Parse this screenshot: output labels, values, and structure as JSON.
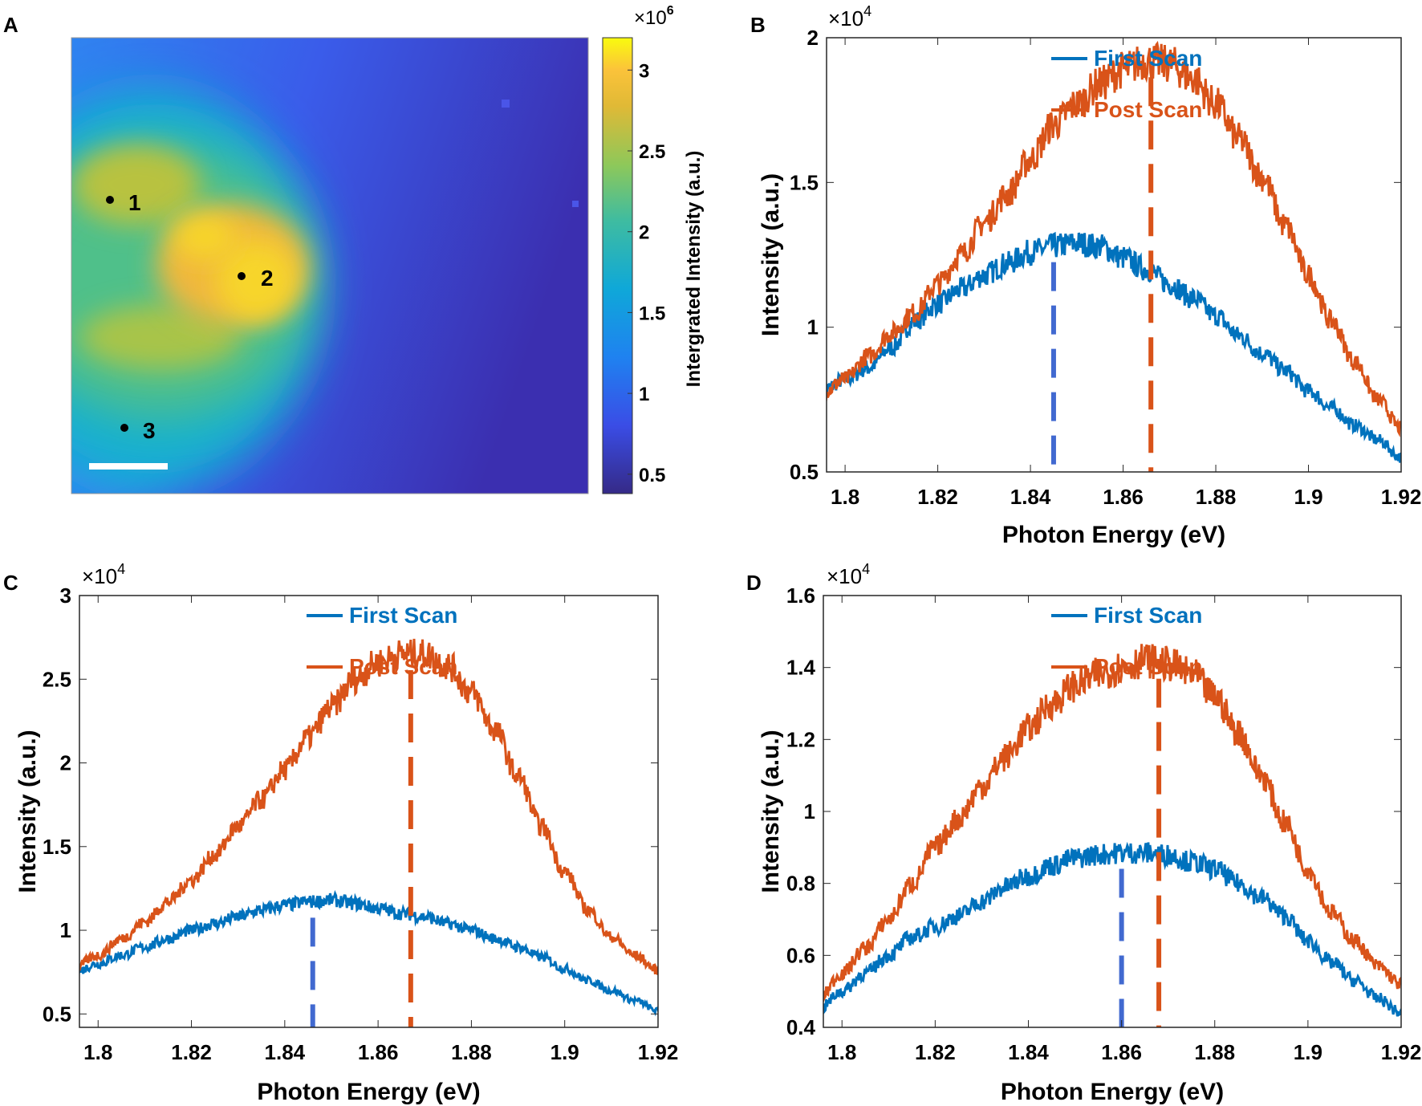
{
  "panel_a": {
    "label": "A",
    "colorbar": {
      "label": "Intergrated Intensity (a.u.)",
      "multiplier_base": "×10",
      "multiplier_exp": "6",
      "ticks": [
        "0.5",
        "1",
        "1.5",
        "2",
        "2.5",
        "3"
      ],
      "tick_values": [
        0.5,
        1,
        1.5,
        2,
        2.5,
        3
      ],
      "range": [
        0.38,
        3.2
      ],
      "colormap": "parula"
    },
    "points": [
      {
        "label": "1"
      },
      {
        "label": "2"
      },
      {
        "label": "3"
      }
    ]
  },
  "chart_data": [
    {
      "panel": "B",
      "type": "line",
      "xlabel": "Photon Energy (eV)",
      "ylabel": "Intensity (a.u.)",
      "y_multiplier_base": "×10",
      "y_multiplier_exp": "4",
      "xlim": [
        1.796,
        1.92
      ],
      "ylim": [
        0.5,
        2
      ],
      "xticks": [
        "1.8",
        "1.82",
        "1.84",
        "1.86",
        "1.88",
        "1.9",
        "1.92"
      ],
      "yticks": [
        "0.5",
        "1",
        "1.5",
        "2"
      ],
      "legend": "top-right",
      "x": [
        1.795,
        1.8,
        1.805,
        1.81,
        1.815,
        1.82,
        1.825,
        1.83,
        1.835,
        1.84,
        1.845,
        1.85,
        1.855,
        1.86,
        1.865,
        1.87,
        1.875,
        1.88,
        1.885,
        1.89,
        1.895,
        1.9,
        1.905,
        1.91,
        1.915,
        1.92
      ],
      "series": [
        {
          "name": "First Scan",
          "color": "#0072BD",
          "values": [
            0.78,
            0.82,
            0.86,
            0.93,
            1.02,
            1.08,
            1.13,
            1.18,
            1.22,
            1.26,
            1.28,
            1.29,
            1.28,
            1.24,
            1.2,
            1.15,
            1.1,
            1.04,
            0.97,
            0.91,
            0.85,
            0.78,
            0.72,
            0.66,
            0.61,
            0.55
          ],
          "peak": 1.845,
          "peak_color": "#4169D0"
        },
        {
          "name": "Post Scan",
          "color": "#D95319",
          "values": [
            0.77,
            0.82,
            0.9,
            0.98,
            1.05,
            1.15,
            1.25,
            1.36,
            1.46,
            1.58,
            1.7,
            1.77,
            1.84,
            1.89,
            1.92,
            1.91,
            1.86,
            1.77,
            1.65,
            1.52,
            1.35,
            1.18,
            1.02,
            0.88,
            0.75,
            0.65
          ],
          "peak": 1.866,
          "peak_color": "#D95319"
        }
      ]
    },
    {
      "panel": "C",
      "type": "line",
      "xlabel": "Photon Energy (eV)",
      "ylabel": "Intensity (a.u.)",
      "y_multiplier_base": "×10",
      "y_multiplier_exp": "4",
      "xlim": [
        1.796,
        1.92
      ],
      "ylim": [
        0.42,
        3
      ],
      "xticks": [
        "1.8",
        "1.82",
        "1.84",
        "1.86",
        "1.88",
        "1.9",
        "1.92"
      ],
      "yticks": [
        "0.5",
        "1",
        "1.5",
        "2",
        "2.5",
        "3"
      ],
      "legend": "top-right",
      "x": [
        1.795,
        1.8,
        1.805,
        1.81,
        1.815,
        1.82,
        1.825,
        1.83,
        1.835,
        1.84,
        1.845,
        1.85,
        1.855,
        1.86,
        1.865,
        1.87,
        1.875,
        1.88,
        1.885,
        1.89,
        1.895,
        1.9,
        1.905,
        1.91,
        1.915,
        1.92
      ],
      "series": [
        {
          "name": "First Scan",
          "color": "#0072BD",
          "values": [
            0.75,
            0.8,
            0.85,
            0.9,
            0.95,
            1.0,
            1.04,
            1.08,
            1.12,
            1.15,
            1.17,
            1.18,
            1.16,
            1.13,
            1.1,
            1.08,
            1.04,
            1.0,
            0.95,
            0.9,
            0.84,
            0.77,
            0.7,
            0.64,
            0.58,
            0.52
          ],
          "peak": 1.846,
          "peak_color": "#4169D0"
        },
        {
          "name": "Post Scan",
          "color": "#D95319",
          "values": [
            0.78,
            0.85,
            0.95,
            1.05,
            1.17,
            1.3,
            1.45,
            1.62,
            1.78,
            1.96,
            2.15,
            2.33,
            2.5,
            2.6,
            2.65,
            2.65,
            2.58,
            2.42,
            2.2,
            1.92,
            1.62,
            1.35,
            1.12,
            0.96,
            0.85,
            0.76
          ],
          "peak": 1.867,
          "peak_color": "#D95319"
        }
      ]
    },
    {
      "panel": "D",
      "type": "line",
      "xlabel": "Photon Energy (eV)",
      "ylabel": "Intensity (a.u.)",
      "y_multiplier_base": "×10",
      "y_multiplier_exp": "4",
      "xlim": [
        1.796,
        1.92
      ],
      "ylim": [
        0.4,
        1.6
      ],
      "xticks": [
        "1.8",
        "1.82",
        "1.84",
        "1.86",
        "1.88",
        "1.9",
        "1.92"
      ],
      "yticks": [
        "0.4",
        "0.6",
        "0.8",
        "1",
        "1.2",
        "1.4",
        "1.6"
      ],
      "legend": "top-right",
      "x": [
        1.795,
        1.8,
        1.805,
        1.81,
        1.815,
        1.82,
        1.825,
        1.83,
        1.835,
        1.84,
        1.845,
        1.85,
        1.855,
        1.86,
        1.865,
        1.87,
        1.875,
        1.88,
        1.885,
        1.89,
        1.895,
        1.9,
        1.905,
        1.91,
        1.915,
        1.92
      ],
      "series": [
        {
          "name": "First Scan",
          "color": "#0072BD",
          "values": [
            0.45,
            0.5,
            0.55,
            0.6,
            0.65,
            0.68,
            0.71,
            0.75,
            0.79,
            0.82,
            0.85,
            0.87,
            0.88,
            0.885,
            0.885,
            0.88,
            0.86,
            0.84,
            0.8,
            0.76,
            0.71,
            0.64,
            0.58,
            0.53,
            0.48,
            0.44
          ],
          "peak": 1.86,
          "peak_color": "#4169D0"
        },
        {
          "name": "Post Scan",
          "color": "#D95319",
          "values": [
            0.48,
            0.55,
            0.62,
            0.7,
            0.8,
            0.9,
            0.98,
            1.07,
            1.15,
            1.23,
            1.3,
            1.35,
            1.38,
            1.4,
            1.42,
            1.41,
            1.38,
            1.32,
            1.22,
            1.1,
            0.97,
            0.84,
            0.72,
            0.64,
            0.57,
            0.52
          ],
          "peak": 1.868,
          "peak_color": "#D95319"
        }
      ]
    }
  ]
}
